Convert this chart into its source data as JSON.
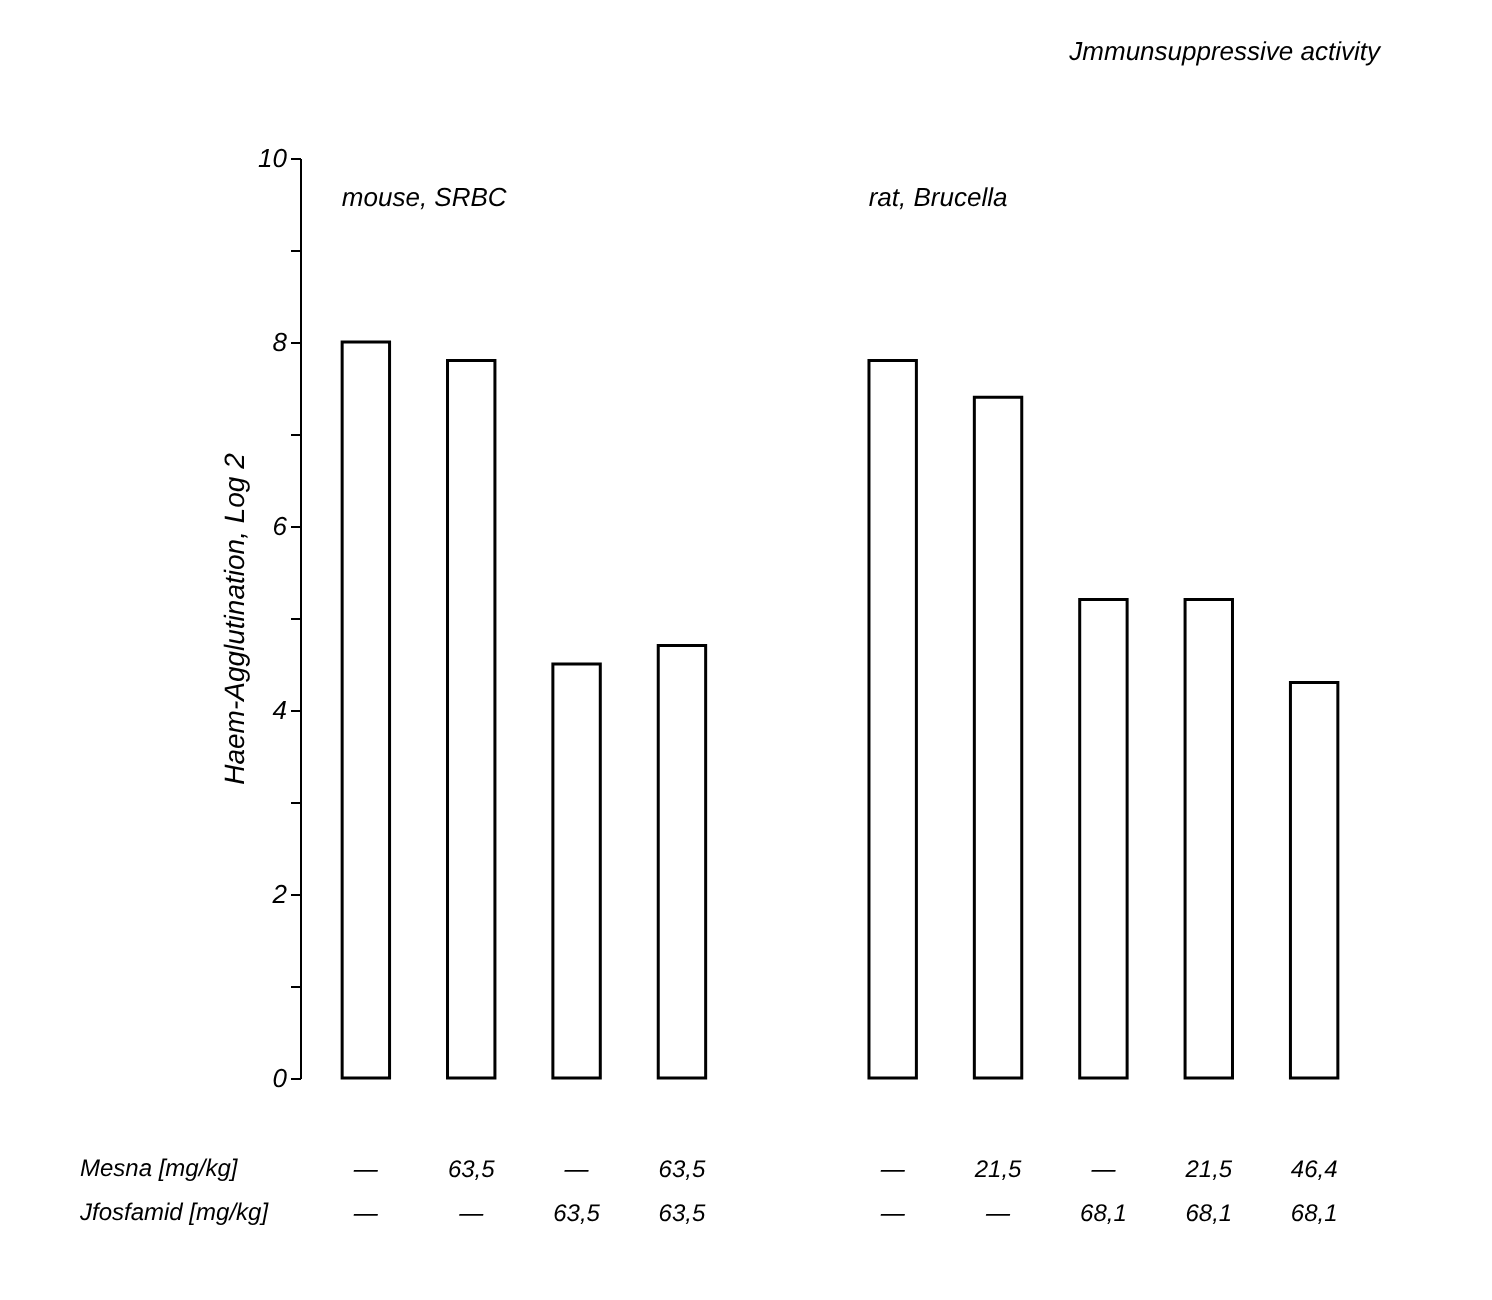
{
  "chart_data": {
    "type": "bar",
    "title": "Jmmunsuppressive activity",
    "ylabel": "Haem-Agglutination, Log 2",
    "categories": [
      "—\n—",
      "63,5\n—",
      "—\n63,5",
      "63,5\n63,5",
      null,
      "—\n—",
      "21,5\n—",
      "—\n68,1",
      "21,5\n68,1",
      "46,4\n68,1"
    ],
    "values": [
      8.0,
      7.8,
      4.5,
      4.7,
      null,
      7.8,
      7.4,
      5.2,
      5.2,
      4.3
    ],
    "color": "#ffffff",
    "ylim": [
      0,
      10
    ],
    "yticks": [
      0,
      {
        "value": 1,
        "label": null
      },
      2,
      {
        "value": 3,
        "label": null
      },
      4,
      {
        "value": 5,
        "label": null
      },
      6,
      {
        "value": 7,
        "label": null
      },
      8,
      {
        "value": 9,
        "label": null
      },
      10
    ],
    "annotations": [
      "mouse,   SRBC",
      "rat,   Brucella",
      "Mesna  [mg/kg]",
      "Jfosfamid  [mg/kg]"
    ],
    "grid": false
  }
}
